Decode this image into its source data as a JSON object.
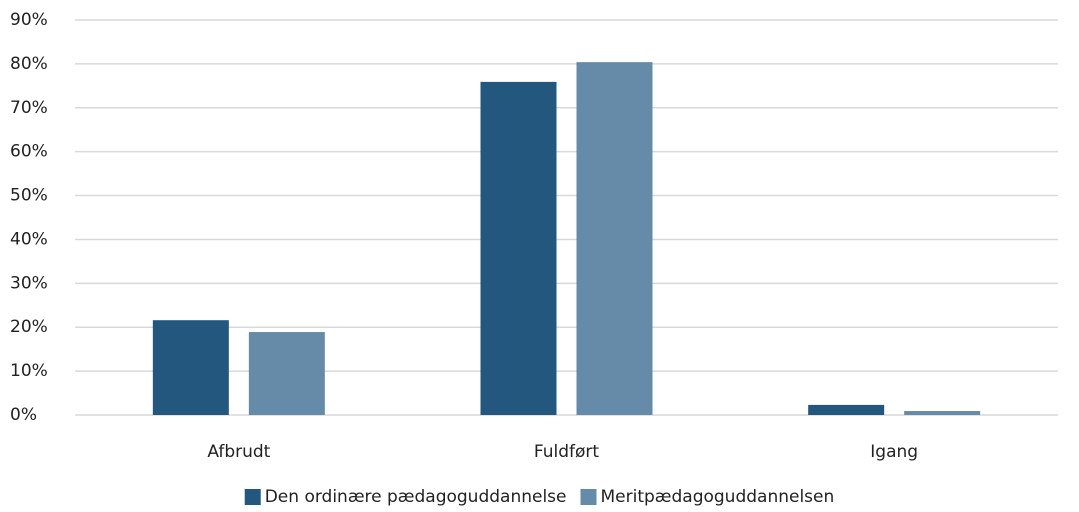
{
  "chart_data": {
    "type": "bar",
    "categories": [
      "Afbrudt",
      "Fuldført",
      "Igang"
    ],
    "series": [
      {
        "name": "Den ordinære pædagoguddannelse",
        "color": "#23577e",
        "values": [
          21.6,
          75.9,
          2.3
        ]
      },
      {
        "name": "Meritpædagoguddannelsen",
        "color": "#668ba8",
        "values": [
          18.9,
          80.4,
          0.9
        ]
      }
    ],
    "ylim": [
      0,
      90
    ],
    "yticks": [
      {
        "value": 0,
        "label": "0%"
      },
      {
        "value": 10,
        "label": "10%"
      },
      {
        "value": 20,
        "label": "20%"
      },
      {
        "value": 30,
        "label": "30%"
      },
      {
        "value": 40,
        "label": "40%"
      },
      {
        "value": 50,
        "label": "50%"
      },
      {
        "value": 60,
        "label": "60%"
      },
      {
        "value": 70,
        "label": "70%"
      },
      {
        "value": 80,
        "label": "80%"
      },
      {
        "value": 90,
        "label": "90%"
      }
    ],
    "grid": true,
    "legend": "bottom"
  }
}
